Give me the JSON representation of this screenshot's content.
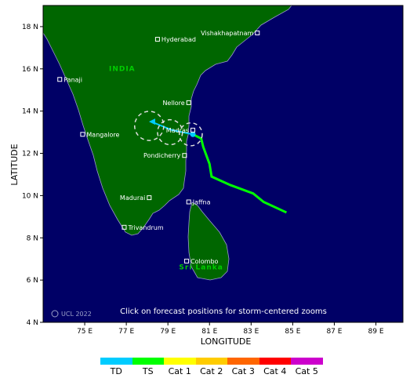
{
  "map": {
    "x_axis_title": "LONGITUDE",
    "y_axis_title": "LATITUDE",
    "x_ticks": [
      {
        "lon": 75,
        "label": "75 E"
      },
      {
        "lon": 77,
        "label": "77 E"
      },
      {
        "lon": 79,
        "label": "79 E"
      },
      {
        "lon": 81,
        "label": "81 E"
      },
      {
        "lon": 83,
        "label": "83 E"
      },
      {
        "lon": 85,
        "label": "85 E"
      },
      {
        "lon": 87,
        "label": "87 E"
      },
      {
        "lon": 89,
        "label": "89 E"
      }
    ],
    "y_ticks": [
      {
        "lat": 4,
        "label": "4 N"
      },
      {
        "lat": 6,
        "label": "6 N"
      },
      {
        "lat": 8,
        "label": "8 N"
      },
      {
        "lat": 10,
        "label": "10 N"
      },
      {
        "lat": 12,
        "label": "12 N"
      },
      {
        "lat": 14,
        "label": "14 N"
      },
      {
        "lat": 16,
        "label": "16 N"
      },
      {
        "lat": 18,
        "label": "18 N"
      }
    ],
    "extent": {
      "lon_min": 73,
      "lon_max": 90.3,
      "lat_min": 4,
      "lat_max": 19
    },
    "colors": {
      "ocean": "#000066",
      "land": "#006600",
      "coast": "#9999cc"
    },
    "country_labels": [
      {
        "text": "INDIA",
        "lon": 76.8,
        "lat": 15.9
      },
      {
        "text": "Sri Lanka",
        "lon": 80.6,
        "lat": 6.5
      }
    ],
    "cities": [
      {
        "name": "Hyderabad",
        "lon": 78.5,
        "lat": 17.4,
        "label_side": "right"
      },
      {
        "name": "Vishakhapatnam",
        "lon": 83.3,
        "lat": 17.7,
        "label_side": "left"
      },
      {
        "name": "Panaji",
        "lon": 73.8,
        "lat": 15.5,
        "label_side": "right"
      },
      {
        "name": "Nellore",
        "lon": 80.0,
        "lat": 14.4,
        "label_side": "left"
      },
      {
        "name": "Mangalore",
        "lon": 74.9,
        "lat": 12.9,
        "label_side": "right"
      },
      {
        "name": "Madras",
        "lon": 80.2,
        "lat": 13.1,
        "label_side": "left"
      },
      {
        "name": "Pondicherry",
        "lon": 79.8,
        "lat": 11.9,
        "label_side": "left"
      },
      {
        "name": "Madurai",
        "lon": 78.1,
        "lat": 9.9,
        "label_side": "left"
      },
      {
        "name": "Jaffna",
        "lon": 80.0,
        "lat": 9.7,
        "label_side": "right"
      },
      {
        "name": "Trivandrum",
        "lon": 76.9,
        "lat": 8.5,
        "label_side": "right"
      },
      {
        "name": "Colombo",
        "lon": 79.9,
        "lat": 6.9,
        "label_side": "right"
      }
    ],
    "track": {
      "observed_color": "#00ff00",
      "observed": [
        [
          84.7,
          9.2
        ],
        [
          83.6,
          9.7
        ],
        [
          83.1,
          10.1
        ],
        [
          82.0,
          10.5
        ],
        [
          81.1,
          10.9
        ],
        [
          81.0,
          11.5
        ],
        [
          80.7,
          12.3
        ],
        [
          80.6,
          12.7
        ],
        [
          80.2,
          12.9
        ]
      ],
      "forecast_color": "#00ccff",
      "forecast": [
        [
          80.2,
          12.9
        ],
        [
          79.2,
          13.1
        ],
        [
          78.2,
          13.5
        ]
      ],
      "forecast_circles": [
        {
          "lon": 80.1,
          "lat": 12.9,
          "radius_deg": 0.55
        },
        {
          "lon": 79.1,
          "lat": 13.0,
          "radius_deg": 0.6
        },
        {
          "lon": 78.1,
          "lat": 13.3,
          "radius_deg": 0.7
        }
      ]
    },
    "note": "Click on forecast positions for storm-centered zooms",
    "credit": "UCL 2022"
  },
  "legend": [
    {
      "label": "TD",
      "color": "#00ccff"
    },
    {
      "label": "TS",
      "color": "#00ff00"
    },
    {
      "label": "Cat 1",
      "color": "#ffff00"
    },
    {
      "label": "Cat 2",
      "color": "#ffcc00"
    },
    {
      "label": "Cat 3",
      "color": "#ff6600"
    },
    {
      "label": "Cat 4",
      "color": "#ff0000"
    },
    {
      "label": "Cat 5",
      "color": "#cc00cc"
    }
  ]
}
